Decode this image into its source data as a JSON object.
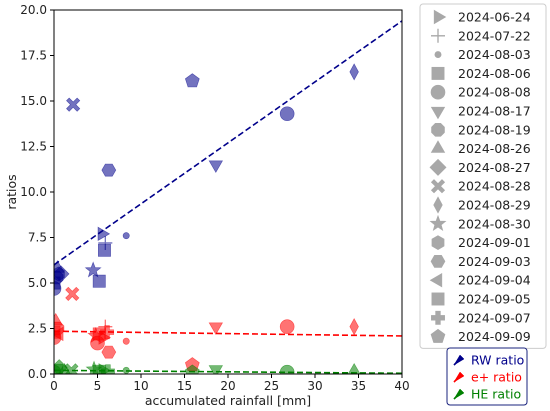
{
  "chart_data": {
    "type": "scatter",
    "title": "",
    "xlabel": "accumulated rainfall [mm]",
    "ylabel": "ratios",
    "xlim": [
      0,
      40
    ],
    "ylim": [
      0,
      20
    ],
    "xticks": [
      "0",
      "5",
      "10",
      "15",
      "20",
      "25",
      "30",
      "35",
      "40"
    ],
    "yticks": [
      "0.0",
      "2.5",
      "5.0",
      "7.5",
      "10.0",
      "12.5",
      "15.0",
      "17.5",
      "20.0"
    ],
    "grid": false,
    "marker_legend_title": "",
    "marker_legend_placement": "outside right",
    "series_legend_placement": "bottom-right outside",
    "marker_color": "#a8a8a8",
    "dates": [
      {
        "label": "2024-06-24",
        "marker": "triangle-right"
      },
      {
        "label": "2024-07-22",
        "marker": "plus-thin"
      },
      {
        "label": "2024-08-03",
        "marker": "small-circle"
      },
      {
        "label": "2024-08-06",
        "marker": "square"
      },
      {
        "label": "2024-08-08",
        "marker": "circle"
      },
      {
        "label": "2024-08-17",
        "marker": "triangle-down"
      },
      {
        "label": "2024-08-19",
        "marker": "octagon"
      },
      {
        "label": "2024-08-26",
        "marker": "triangle-up"
      },
      {
        "label": "2024-08-27",
        "marker": "diamond"
      },
      {
        "label": "2024-08-28",
        "marker": "x-filled"
      },
      {
        "label": "2024-08-29",
        "marker": "thin-diamond"
      },
      {
        "label": "2024-08-30",
        "marker": "star"
      },
      {
        "label": "2024-09-01",
        "marker": "hexagon"
      },
      {
        "label": "2024-09-03",
        "marker": "hexagon-alt"
      },
      {
        "label": "2024-09-04",
        "marker": "triangle-left"
      },
      {
        "label": "2024-09-05",
        "marker": "square"
      },
      {
        "label": "2024-09-07",
        "marker": "plus-filled"
      },
      {
        "label": "2024-09-09",
        "marker": "pentagon"
      }
    ],
    "series": [
      {
        "name": "RW ratio",
        "color": "#00008b",
        "trend": {
          "intercept": 6.0,
          "slope": 0.335,
          "color": "#00008b"
        },
        "points": [
          {
            "x": 0.0,
            "y": 4.7,
            "marker": "circle"
          },
          {
            "x": 0.0,
            "y": 5.0,
            "marker": "square"
          },
          {
            "x": 0.3,
            "y": 5.3,
            "marker": "octagon"
          },
          {
            "x": 0.5,
            "y": 5.5,
            "marker": "hexagon"
          },
          {
            "x": 0.8,
            "y": 5.5,
            "marker": "diamond"
          },
          {
            "x": 0.4,
            "y": 5.8,
            "marker": "triangle-up"
          },
          {
            "x": 2.2,
            "y": 14.8,
            "marker": "x-filled"
          },
          {
            "x": 4.5,
            "y": 5.7,
            "marker": "star"
          },
          {
            "x": 5.2,
            "y": 5.1,
            "marker": "square"
          },
          {
            "x": 5.5,
            "y": 7.7,
            "marker": "triangle-right"
          },
          {
            "x": 5.9,
            "y": 7.2,
            "marker": "plus-thin"
          },
          {
            "x": 5.8,
            "y": 6.8,
            "marker": "square"
          },
          {
            "x": 6.3,
            "y": 11.2,
            "marker": "hexagon-alt"
          },
          {
            "x": 8.3,
            "y": 7.6,
            "marker": "small-circle"
          },
          {
            "x": 15.9,
            "y": 16.1,
            "marker": "pentagon"
          },
          {
            "x": 18.6,
            "y": 11.5,
            "marker": "triangle-down"
          },
          {
            "x": 26.8,
            "y": 14.3,
            "marker": "circle"
          },
          {
            "x": 34.5,
            "y": 16.6,
            "marker": "thin-diamond"
          }
        ]
      },
      {
        "name": "e+ ratio",
        "color": "#ff0000",
        "trend": {
          "intercept": 2.35,
          "slope": -0.0065,
          "color": "#ff0000"
        },
        "points": [
          {
            "x": 0.0,
            "y": 2.0,
            "marker": "circle"
          },
          {
            "x": 0.0,
            "y": 2.3,
            "marker": "square"
          },
          {
            "x": 0.2,
            "y": 2.9,
            "marker": "triangle-up"
          },
          {
            "x": 0.4,
            "y": 2.5,
            "marker": "octagon"
          },
          {
            "x": 0.6,
            "y": 2.2,
            "marker": "triangle-left"
          },
          {
            "x": 2.1,
            "y": 4.4,
            "marker": "x-filled"
          },
          {
            "x": 4.8,
            "y": 2.1,
            "marker": "star"
          },
          {
            "x": 5.0,
            "y": 1.7,
            "marker": "circle"
          },
          {
            "x": 5.2,
            "y": 2.2,
            "marker": "square"
          },
          {
            "x": 5.6,
            "y": 2.0,
            "marker": "triangle-right"
          },
          {
            "x": 5.9,
            "y": 2.6,
            "marker": "plus-thin"
          },
          {
            "x": 6.1,
            "y": 2.3,
            "marker": "plus-filled"
          },
          {
            "x": 6.3,
            "y": 1.2,
            "marker": "hexagon-alt"
          },
          {
            "x": 8.3,
            "y": 1.8,
            "marker": "small-circle"
          },
          {
            "x": 15.9,
            "y": 0.5,
            "marker": "pentagon"
          },
          {
            "x": 18.6,
            "y": 2.6,
            "marker": "triangle-down"
          },
          {
            "x": 26.8,
            "y": 2.6,
            "marker": "circle"
          },
          {
            "x": 34.5,
            "y": 2.6,
            "marker": "thin-diamond"
          }
        ]
      },
      {
        "name": "HE ratio",
        "color": "#008000",
        "trend": {
          "intercept": 0.2,
          "slope": -0.004,
          "color": "#008000"
        },
        "points": [
          {
            "x": 0.0,
            "y": 0.1,
            "marker": "circle"
          },
          {
            "x": 0.3,
            "y": 0.2,
            "marker": "square"
          },
          {
            "x": 0.6,
            "y": 0.35,
            "marker": "diamond"
          },
          {
            "x": 1.2,
            "y": 0.15,
            "marker": "triangle-up"
          },
          {
            "x": 2.0,
            "y": 0.2,
            "marker": "x-filled"
          },
          {
            "x": 4.6,
            "y": 0.25,
            "marker": "star"
          },
          {
            "x": 5.2,
            "y": 0.15,
            "marker": "square"
          },
          {
            "x": 5.6,
            "y": 0.2,
            "marker": "triangle-right"
          },
          {
            "x": 6.2,
            "y": 0.15,
            "marker": "plus-filled"
          },
          {
            "x": 8.3,
            "y": 0.2,
            "marker": "small-circle"
          },
          {
            "x": 15.9,
            "y": 0.1,
            "marker": "pentagon"
          },
          {
            "x": 18.6,
            "y": 0.25,
            "marker": "triangle-down"
          },
          {
            "x": 26.8,
            "y": 0.1,
            "marker": "circle"
          },
          {
            "x": 34.5,
            "y": 0.15,
            "marker": "triangle-up"
          }
        ]
      }
    ]
  }
}
